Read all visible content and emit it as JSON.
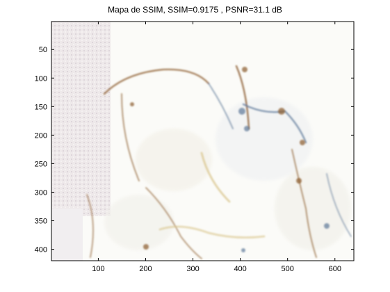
{
  "title": "Mapa de SSIM, SSIM=0.9175 , PSNR=31.1 dB",
  "axes": {
    "x_ticks": [
      100,
      200,
      300,
      400,
      500,
      600
    ],
    "y_ticks": [
      50,
      100,
      150,
      200,
      250,
      300,
      350,
      400
    ],
    "x_range": [
      1,
      640
    ],
    "y_range": [
      1,
      420
    ]
  },
  "colors": {
    "background": "#ffffff",
    "axis": "#000000",
    "map_base": "#fbfbf8",
    "left_region": "#ece6e8",
    "edge_brown": "#8a5a2b",
    "edge_blue": "#5d7898",
    "edge_yellow": "#d8c58a"
  }
}
